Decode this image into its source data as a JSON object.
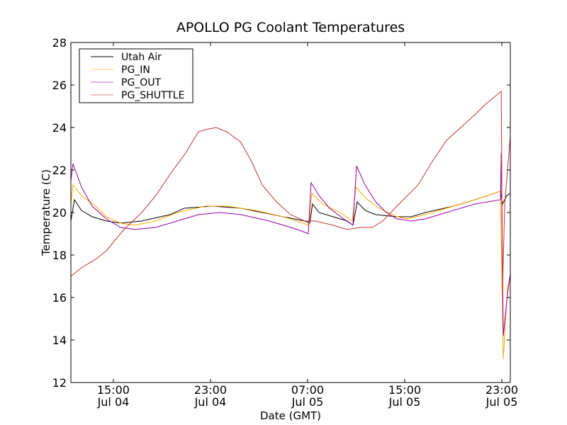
{
  "chart_data": {
    "type": "line",
    "title": "APOLLO PG Coolant Temperatures",
    "xlabel": "Date (GMT)",
    "ylabel": "Temperature (C)",
    "x_units": "hours since Jul 04 00:00 GMT",
    "xlim": [
      11.5,
      47.7
    ],
    "ylim": [
      12,
      28
    ],
    "yticks": [
      12,
      14,
      16,
      18,
      20,
      22,
      24,
      26,
      28
    ],
    "xticks": [
      {
        "value": 15,
        "label": "15:00",
        "sublabel": "Jul 04"
      },
      {
        "value": 23,
        "label": "23:00",
        "sublabel": "Jul 04"
      },
      {
        "value": 31,
        "label": "07:00",
        "sublabel": "Jul 05"
      },
      {
        "value": 39,
        "label": "15:00",
        "sublabel": "Jul 05"
      },
      {
        "value": 47,
        "label": "23:00",
        "sublabel": "Jul 05"
      }
    ],
    "grid": false,
    "legend_position": "top-left",
    "series": [
      {
        "name": "Utah Air",
        "color": "#000000",
        "points": [
          [
            11.5,
            19.6
          ],
          [
            11.79,
            20.6
          ],
          [
            12.37,
            20.1
          ],
          [
            13.25,
            19.8
          ],
          [
            14.42,
            19.6
          ],
          [
            15.58,
            19.5
          ],
          [
            17.34,
            19.6
          ],
          [
            19.67,
            19.9
          ],
          [
            20.84,
            20.2
          ],
          [
            23.18,
            20.3
          ],
          [
            25.51,
            20.2
          ],
          [
            27.26,
            20.0
          ],
          [
            29.02,
            19.8
          ],
          [
            30.77,
            19.6
          ],
          [
            31.18,
            19.5
          ],
          [
            31.41,
            20.4
          ],
          [
            31.94,
            20.0
          ],
          [
            33.1,
            19.8
          ],
          [
            34.27,
            19.6
          ],
          [
            34.74,
            19.4
          ],
          [
            35.09,
            20.5
          ],
          [
            35.73,
            20.1
          ],
          [
            36.61,
            19.9
          ],
          [
            38.36,
            19.8
          ],
          [
            39.53,
            19.8
          ],
          [
            40.7,
            20.0
          ],
          [
            43.03,
            20.3
          ],
          [
            44.78,
            20.6
          ],
          [
            46.89,
            21.0
          ],
          [
            47.06,
            20.4
          ],
          [
            47.41,
            20.8
          ],
          [
            47.7,
            20.9
          ]
        ]
      },
      {
        "name": "PG_IN",
        "color": "#ffa500",
        "points": [
          [
            11.5,
            20.4
          ],
          [
            11.67,
            21.3
          ],
          [
            12.37,
            20.8
          ],
          [
            13.54,
            20.3
          ],
          [
            14.42,
            19.8
          ],
          [
            15.58,
            19.5
          ],
          [
            16.75,
            19.4
          ],
          [
            18.5,
            19.6
          ],
          [
            20.26,
            20.0
          ],
          [
            22.59,
            20.3
          ],
          [
            24.34,
            20.3
          ],
          [
            26.68,
            20.1
          ],
          [
            29.02,
            19.8
          ],
          [
            31.12,
            19.4
          ],
          [
            31.35,
            20.9
          ],
          [
            32.23,
            20.4
          ],
          [
            33.69,
            20.0
          ],
          [
            34.68,
            19.6
          ],
          [
            34.97,
            21.2
          ],
          [
            35.73,
            20.7
          ],
          [
            36.9,
            20.2
          ],
          [
            38.36,
            19.8
          ],
          [
            39.24,
            19.7
          ],
          [
            40.7,
            19.9
          ],
          [
            43.03,
            20.3
          ],
          [
            44.78,
            20.6
          ],
          [
            46.89,
            21.0
          ],
          [
            47.12,
            13.1
          ],
          [
            47.47,
            16.5
          ],
          [
            47.7,
            17.0
          ]
        ]
      },
      {
        "name": "PG_OUT",
        "color": "#9400a0",
        "points": [
          [
            11.5,
            21.5
          ],
          [
            11.67,
            22.3
          ],
          [
            12.37,
            21.2
          ],
          [
            13.25,
            20.3
          ],
          [
            14.42,
            19.7
          ],
          [
            15.58,
            19.3
          ],
          [
            16.75,
            19.2
          ],
          [
            18.5,
            19.3
          ],
          [
            20.26,
            19.6
          ],
          [
            22.01,
            19.9
          ],
          [
            23.76,
            20.0
          ],
          [
            25.51,
            19.9
          ],
          [
            27.85,
            19.6
          ],
          [
            30.18,
            19.2
          ],
          [
            31.06,
            19.0
          ],
          [
            31.29,
            21.4
          ],
          [
            31.94,
            20.8
          ],
          [
            32.81,
            20.2
          ],
          [
            33.98,
            19.7
          ],
          [
            34.74,
            19.4
          ],
          [
            35.03,
            22.2
          ],
          [
            35.73,
            21.3
          ],
          [
            36.61,
            20.5
          ],
          [
            37.48,
            20.0
          ],
          [
            38.36,
            19.7
          ],
          [
            39.53,
            19.6
          ],
          [
            40.7,
            19.7
          ],
          [
            42.45,
            20.0
          ],
          [
            44.78,
            20.4
          ],
          [
            46.89,
            20.6
          ],
          [
            46.95,
            22.8
          ],
          [
            47.12,
            14.2
          ],
          [
            47.47,
            16.2
          ],
          [
            47.7,
            17.1
          ]
        ]
      },
      {
        "name": "PG_SHUTTLE",
        "color": "#c83232",
        "points": [
          [
            11.5,
            17.0
          ],
          [
            12.37,
            17.4
          ],
          [
            13.54,
            17.8
          ],
          [
            14.42,
            18.2
          ],
          [
            15.0,
            18.6
          ],
          [
            15.88,
            19.2
          ],
          [
            17.34,
            20.0
          ],
          [
            18.5,
            20.8
          ],
          [
            19.67,
            21.8
          ],
          [
            20.96,
            22.8
          ],
          [
            22.01,
            23.8
          ],
          [
            22.59,
            23.9
          ],
          [
            23.47,
            24.0
          ],
          [
            24.34,
            23.8
          ],
          [
            25.51,
            23.3
          ],
          [
            26.39,
            22.4
          ],
          [
            27.26,
            21.3
          ],
          [
            28.43,
            20.5
          ],
          [
            29.6,
            19.9
          ],
          [
            30.77,
            19.6
          ],
          [
            31.64,
            19.6
          ],
          [
            33.1,
            19.4
          ],
          [
            34.27,
            19.2
          ],
          [
            35.44,
            19.3
          ],
          [
            36.32,
            19.3
          ],
          [
            37.19,
            19.6
          ],
          [
            38.36,
            20.3
          ],
          [
            40.11,
            21.3
          ],
          [
            41.28,
            22.4
          ],
          [
            42.45,
            23.4
          ],
          [
            43.62,
            24.0
          ],
          [
            44.78,
            24.6
          ],
          [
            45.66,
            25.1
          ],
          [
            46.95,
            25.7
          ],
          [
            47.06,
            16.3
          ],
          [
            47.24,
            20.4
          ],
          [
            47.7,
            23.6
          ]
        ]
      }
    ]
  }
}
